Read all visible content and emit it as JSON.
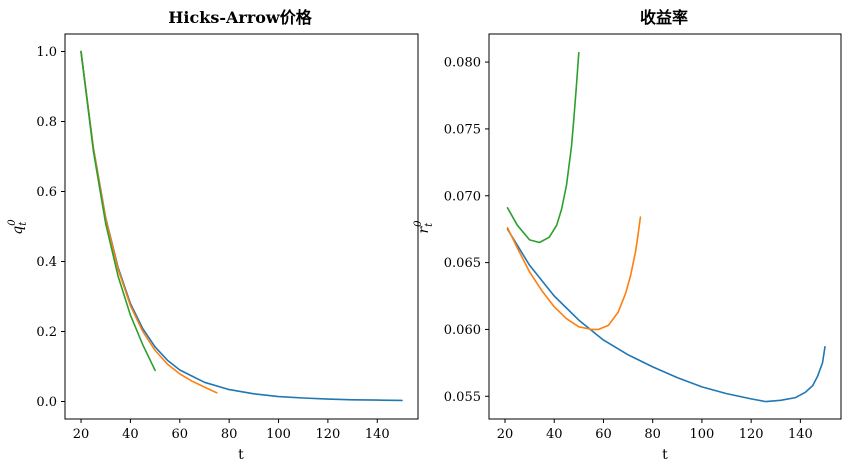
{
  "chart_data": [
    {
      "type": "line",
      "title": "Hicks-Arrow价格",
      "xlabel": "t",
      "ylabel": "q_t^0",
      "xlim": [
        13.5,
        156.5
      ],
      "ylim": [
        -0.05,
        1.05
      ],
      "xticks": [
        20,
        40,
        60,
        80,
        100,
        120,
        140
      ],
      "yticks": [
        0.0,
        0.2,
        0.4,
        0.6,
        0.8,
        1.0
      ],
      "ytick_labels": [
        "0.0",
        "0.2",
        "0.4",
        "0.6",
        "0.8",
        "1.0"
      ],
      "grid": false,
      "series": [
        {
          "color": "#1f77b4",
          "x": [
            20,
            25,
            30,
            35,
            40,
            45,
            50,
            55,
            60,
            70,
            80,
            90,
            100,
            110,
            120,
            130,
            140,
            150
          ],
          "y": [
            1.0,
            0.724,
            0.525,
            0.383,
            0.28,
            0.208,
            0.156,
            0.118,
            0.09,
            0.055,
            0.034,
            0.022,
            0.014,
            0.01,
            0.007,
            0.005,
            0.004,
            0.003
          ]
        },
        {
          "color": "#ff7f0e",
          "x": [
            20,
            25,
            30,
            35,
            40,
            45,
            50,
            55,
            60,
            65,
            70,
            75
          ],
          "y": [
            1.0,
            0.722,
            0.522,
            0.378,
            0.274,
            0.2,
            0.146,
            0.107,
            0.079,
            0.058,
            0.041,
            0.025
          ]
        },
        {
          "color": "#2ca02c",
          "x": [
            20,
            25,
            30,
            35,
            40,
            45,
            50
          ],
          "y": [
            1.0,
            0.715,
            0.508,
            0.358,
            0.247,
            0.162,
            0.089
          ]
        }
      ]
    },
    {
      "type": "line",
      "title": "收益率",
      "xlabel": "t",
      "ylabel": "r_t^0",
      "xlim": [
        13.5,
        156.5
      ],
      "ylim": [
        0.0533,
        0.0821
      ],
      "xticks": [
        20,
        40,
        60,
        80,
        100,
        120,
        140
      ],
      "yticks": [
        0.055,
        0.06,
        0.065,
        0.07,
        0.075,
        0.08
      ],
      "ytick_labels": [
        "0.055",
        "0.060",
        "0.065",
        "0.070",
        "0.075",
        "0.080"
      ],
      "grid": false,
      "series": [
        {
          "color": "#1f77b4",
          "x": [
            21,
            30,
            40,
            50,
            60,
            70,
            80,
            90,
            100,
            110,
            120,
            126,
            132,
            138,
            142,
            145,
            147,
            149,
            150
          ],
          "y": [
            0.0675,
            0.0648,
            0.0625,
            0.0607,
            0.0592,
            0.0581,
            0.0572,
            0.0564,
            0.0557,
            0.0552,
            0.0548,
            0.0546,
            0.0547,
            0.0549,
            0.0553,
            0.0558,
            0.0565,
            0.0575,
            0.0587
          ]
        },
        {
          "color": "#ff7f0e",
          "x": [
            21,
            25,
            30,
            35,
            40,
            45,
            50,
            55,
            58,
            62,
            66,
            69,
            71,
            73,
            74,
            75
          ],
          "y": [
            0.0676,
            0.0661,
            0.0643,
            0.0629,
            0.0617,
            0.0608,
            0.0602,
            0.06,
            0.06,
            0.0603,
            0.0613,
            0.0627,
            0.064,
            0.0658,
            0.067,
            0.0684
          ]
        },
        {
          "color": "#2ca02c",
          "x": [
            21,
            25,
            30,
            34,
            38,
            41,
            43,
            45,
            47,
            48,
            49,
            50
          ],
          "y": [
            0.0691,
            0.0678,
            0.0667,
            0.0665,
            0.0669,
            0.0678,
            0.069,
            0.0708,
            0.0737,
            0.0758,
            0.0782,
            0.0807
          ]
        }
      ]
    }
  ]
}
